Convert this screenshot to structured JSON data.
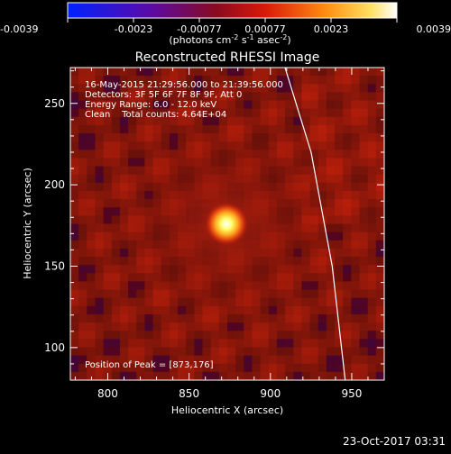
{
  "colorbar": {
    "tick_labels": [
      "-0.0039",
      "-0.0023",
      "-0.00077",
      "0.00077",
      "0.0023",
      "0.0039"
    ],
    "units_prefix": "(photons cm",
    "units_exp1": "-2",
    "units_mid1": " s",
    "units_exp2": "-1",
    "units_mid2": " asec",
    "units_exp3": "-2",
    "units_suffix": ")"
  },
  "chart_data": {
    "type": "heatmap",
    "title": "Reconstructed RHESSI Image",
    "xlabel": "Heliocentric X (arcsec)",
    "ylabel": "Heliocentric Y (arcsec)",
    "xlim": [
      777,
      970
    ],
    "ylim": [
      80,
      272
    ],
    "x_ticks": [
      "800",
      "850",
      "900",
      "950"
    ],
    "y_ticks": [
      "100",
      "150",
      "200",
      "250"
    ],
    "colormap": "hot (black-blue-purple-red-orange-yellow-white)",
    "clim": [
      -0.0039,
      0.0039
    ],
    "peak": {
      "x": 873,
      "y": 176
    },
    "annotations": [
      "16-May-2015 21:29:56.000 to 21:39:56.000",
      "Detectors: 3F 5F 6F 7F 8F 9F, Att 0",
      "Energy Range: 6.0 - 12.0 keV",
      "Clean    Total counts: 4.64E+04"
    ],
    "peak_label": "Position of Peak = [873,176]",
    "limb_curve": {
      "x": [
        909,
        925,
        938,
        946
      ],
      "y": [
        272,
        220,
        150,
        80
      ]
    }
  },
  "footer": {
    "date": "23-Oct-2017 03:31"
  },
  "colors": {
    "background": "#000000",
    "axis": "#ffffff"
  }
}
